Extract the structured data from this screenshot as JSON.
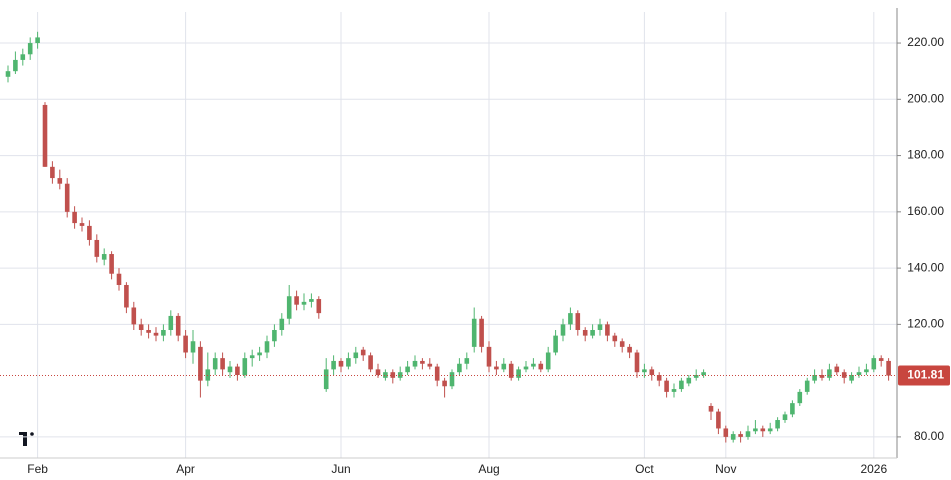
{
  "chart_data": {
    "type": "candlestick",
    "categories": [
      null,
      null,
      null,
      null,
      "Feb",
      null,
      null,
      null,
      null,
      null,
      null,
      null,
      null,
      null,
      null,
      null,
      null,
      null,
      null,
      null,
      null,
      null,
      null,
      null,
      "Apr",
      null,
      null,
      null,
      null,
      null,
      null,
      null,
      null,
      null,
      null,
      null,
      null,
      null,
      null,
      null,
      null,
      null,
      null,
      null,
      null,
      "Jun",
      null,
      null,
      null,
      null,
      null,
      null,
      null,
      null,
      null,
      null,
      null,
      null,
      null,
      null,
      null,
      null,
      null,
      null,
      null,
      "Aug",
      null,
      null,
      null,
      null,
      null,
      null,
      null,
      null,
      null,
      null,
      null,
      null,
      null,
      null,
      null,
      null,
      null,
      null,
      null,
      null,
      "Oct",
      null,
      null,
      null,
      null,
      null,
      null,
      null,
      null,
      null,
      null,
      "Nov",
      null,
      null,
      null,
      null,
      null,
      null,
      null,
      null,
      null,
      null,
      null,
      null,
      null,
      null,
      null,
      null,
      null,
      null,
      null,
      "2026",
      null,
      null
    ],
    "open": [
      208,
      210,
      214,
      216,
      220,
      198,
      176,
      172,
      170,
      160,
      156,
      155,
      150,
      143,
      145,
      138,
      134,
      126,
      120,
      118,
      117,
      116,
      118,
      123,
      116,
      110,
      112,
      100,
      104,
      108,
      103,
      105,
      102,
      108,
      109,
      110,
      114,
      118,
      122,
      130,
      127,
      128,
      129,
      97,
      104,
      107,
      105,
      108,
      111,
      109,
      104,
      101,
      103,
      101,
      103,
      105,
      107,
      106,
      105,
      100,
      98,
      103,
      106,
      112,
      122,
      112,
      105,
      104,
      106,
      101,
      104,
      105,
      106,
      104,
      110,
      116,
      120,
      124,
      118,
      116,
      118,
      120,
      116,
      114,
      112,
      110,
      103,
      104,
      102,
      100,
      96,
      97,
      99,
      101,
      102,
      91,
      89,
      83,
      79,
      81,
      80,
      82,
      83,
      82,
      83,
      86,
      88,
      92,
      96,
      100,
      102,
      101,
      105,
      103,
      100,
      102,
      103,
      104,
      108,
      107
    ],
    "high": [
      212,
      217,
      218,
      222,
      224,
      199,
      178,
      175,
      172,
      162,
      158,
      157,
      152,
      147,
      146,
      140,
      135,
      128,
      122,
      120,
      119,
      120,
      125,
      124,
      118,
      118,
      114,
      110,
      110,
      110,
      107,
      106,
      110,
      111,
      112,
      116,
      120,
      124,
      134,
      132,
      131,
      131,
      130,
      108,
      109,
      108,
      110,
      112,
      112,
      110,
      106,
      104,
      104,
      105,
      107,
      109,
      108,
      108,
      106,
      101,
      104,
      108,
      110,
      126,
      123,
      114,
      107,
      108,
      107,
      105,
      107,
      108,
      107,
      112,
      118,
      122,
      126,
      125,
      119,
      120,
      122,
      121,
      117,
      115,
      113,
      111,
      106,
      105,
      103,
      101,
      99,
      101,
      102,
      104,
      104,
      92,
      90,
      84,
      82,
      82,
      84,
      86,
      84,
      85,
      87,
      89,
      93,
      97,
      101,
      104,
      104,
      106,
      106,
      104,
      103,
      105,
      106,
      109,
      109,
      108
    ],
    "low": [
      206,
      209,
      212,
      214,
      218,
      176,
      170,
      168,
      158,
      154,
      153,
      148,
      142,
      141,
      136,
      132,
      124,
      118,
      116,
      115,
      114,
      114,
      116,
      114,
      108,
      106,
      94,
      98,
      102,
      102,
      101,
      100,
      101,
      105,
      107,
      108,
      112,
      116,
      120,
      125,
      125,
      126,
      122,
      96,
      102,
      103,
      104,
      106,
      107,
      103,
      101,
      100,
      99,
      100,
      102,
      104,
      104,
      104,
      98,
      94,
      97,
      102,
      104,
      110,
      110,
      103,
      102,
      103,
      100,
      100,
      103,
      104,
      103,
      103,
      109,
      114,
      118,
      116,
      114,
      115,
      116,
      114,
      112,
      110,
      108,
      101,
      101,
      100,
      98,
      94,
      94,
      96,
      98,
      100,
      101,
      86,
      81,
      78,
      78,
      78,
      79,
      81,
      80,
      81,
      82,
      85,
      87,
      91,
      95,
      99,
      100,
      100,
      102,
      99,
      99,
      101,
      102,
      103,
      105,
      100
    ],
    "close": [
      210,
      214,
      216,
      220,
      222,
      176,
      172,
      170,
      160,
      156,
      155,
      150,
      144,
      145,
      138,
      134,
      126,
      120,
      118,
      117,
      116,
      118,
      123,
      116,
      110,
      114,
      100,
      104,
      108,
      104,
      105,
      102,
      108,
      109,
      110,
      114,
      118,
      122,
      130,
      127,
      128,
      129,
      124,
      104,
      107,
      105,
      108,
      110,
      109,
      104,
      102,
      103,
      101,
      103,
      105,
      107,
      106,
      105,
      100,
      98,
      103,
      106,
      108,
      122,
      112,
      105,
      104,
      106,
      101,
      104,
      105,
      106,
      104,
      110,
      116,
      120,
      124,
      118,
      116,
      118,
      120,
      116,
      114,
      112,
      110,
      103,
      104,
      102,
      100,
      96,
      97,
      100,
      101,
      102,
      103,
      89,
      83,
      80,
      81,
      80,
      82,
      83,
      82,
      83,
      86,
      88,
      92,
      96,
      100,
      102,
      101,
      104,
      103,
      101,
      102,
      103,
      104,
      108,
      107,
      101.81
    ],
    "up_color": "#4fb56f",
    "down_color": "#c0504d",
    "last_price": 101.81,
    "last_price_color": "#c8463f",
    "ylim": [
      72.5,
      235.3
    ],
    "yticks": [
      {
        "value": 80,
        "label": "80.00"
      },
      {
        "value": 120,
        "label": "120.00"
      },
      {
        "value": 140,
        "label": "140.00"
      },
      {
        "value": 160,
        "label": "160.00"
      },
      {
        "value": 180,
        "label": "180.00"
      },
      {
        "value": 200,
        "label": "200.00"
      },
      {
        "value": 220,
        "label": "220.00"
      }
    ],
    "grid": true
  }
}
